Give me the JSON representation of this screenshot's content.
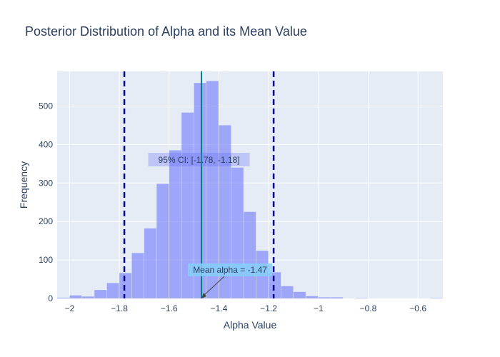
{
  "chart_data": {
    "type": "bar",
    "title": "Posterior Distribution of Alpha and its Mean Value",
    "xlabel": "Alpha Value",
    "ylabel": "Frequency",
    "xlim": [
      -2.05,
      -0.5
    ],
    "ylim": [
      0,
      590
    ],
    "bin_width": 0.05,
    "x_ticks": [
      -2,
      -1.8,
      -1.6,
      -1.4,
      -1.2,
      -1,
      -0.8,
      -0.6
    ],
    "x_tick_labels": [
      "−2",
      "−1.8",
      "−1.6",
      "−1.4",
      "−1.2",
      "−1",
      "−0.8",
      "−0.6"
    ],
    "y_ticks": [
      0,
      100,
      200,
      300,
      400,
      500
    ],
    "y_tick_labels": [
      "0",
      "100",
      "200",
      "300",
      "400",
      "500"
    ],
    "bins": [
      {
        "x0": -2.05,
        "count": 2
      },
      {
        "x0": -2.0,
        "count": 8
      },
      {
        "x0": -1.95,
        "count": 5
      },
      {
        "x0": -1.9,
        "count": 22
      },
      {
        "x0": -1.85,
        "count": 40
      },
      {
        "x0": -1.8,
        "count": 66
      },
      {
        "x0": -1.75,
        "count": 118
      },
      {
        "x0": -1.7,
        "count": 182
      },
      {
        "x0": -1.65,
        "count": 298
      },
      {
        "x0": -1.6,
        "count": 385
      },
      {
        "x0": -1.55,
        "count": 483
      },
      {
        "x0": -1.5,
        "count": 560
      },
      {
        "x0": -1.45,
        "count": 565
      },
      {
        "x0": -1.4,
        "count": 450
      },
      {
        "x0": -1.35,
        "count": 340
      },
      {
        "x0": -1.3,
        "count": 225
      },
      {
        "x0": -1.25,
        "count": 124
      },
      {
        "x0": -1.2,
        "count": 68
      },
      {
        "x0": -1.15,
        "count": 32
      },
      {
        "x0": -1.1,
        "count": 17
      },
      {
        "x0": -1.05,
        "count": 6
      },
      {
        "x0": -1.0,
        "count": 3
      },
      {
        "x0": -0.95,
        "count": 3
      },
      {
        "x0": -0.9,
        "count": 0
      },
      {
        "x0": -0.85,
        "count": 1
      },
      {
        "x0": -0.8,
        "count": 0
      },
      {
        "x0": -0.75,
        "count": 0
      },
      {
        "x0": -0.7,
        "count": 0
      },
      {
        "x0": -0.65,
        "count": 0
      },
      {
        "x0": -0.6,
        "count": 0
      },
      {
        "x0": -0.55,
        "count": 1
      }
    ],
    "mean_line": {
      "x": -1.47,
      "color": "#008080"
    },
    "ci_lines": [
      {
        "x": -1.78,
        "color": "#00008b"
      },
      {
        "x": -1.18,
        "color": "#00008b"
      }
    ],
    "annotations": {
      "ci": {
        "text": "95% CI: [-1.78, -1.18]",
        "x": -1.48,
        "y": 360
      },
      "mean": {
        "text": "Mean alpha = -1.47",
        "x": -1.47,
        "y": 0
      }
    },
    "colors": {
      "bar": "#636efa",
      "bar_opacity": 0.55,
      "plot_bg": "#e5ecf6",
      "grid": "#ffffff",
      "text": "#2a3f5f",
      "annot_bg": "#87cefa"
    },
    "grid": true,
    "legend": "none"
  }
}
